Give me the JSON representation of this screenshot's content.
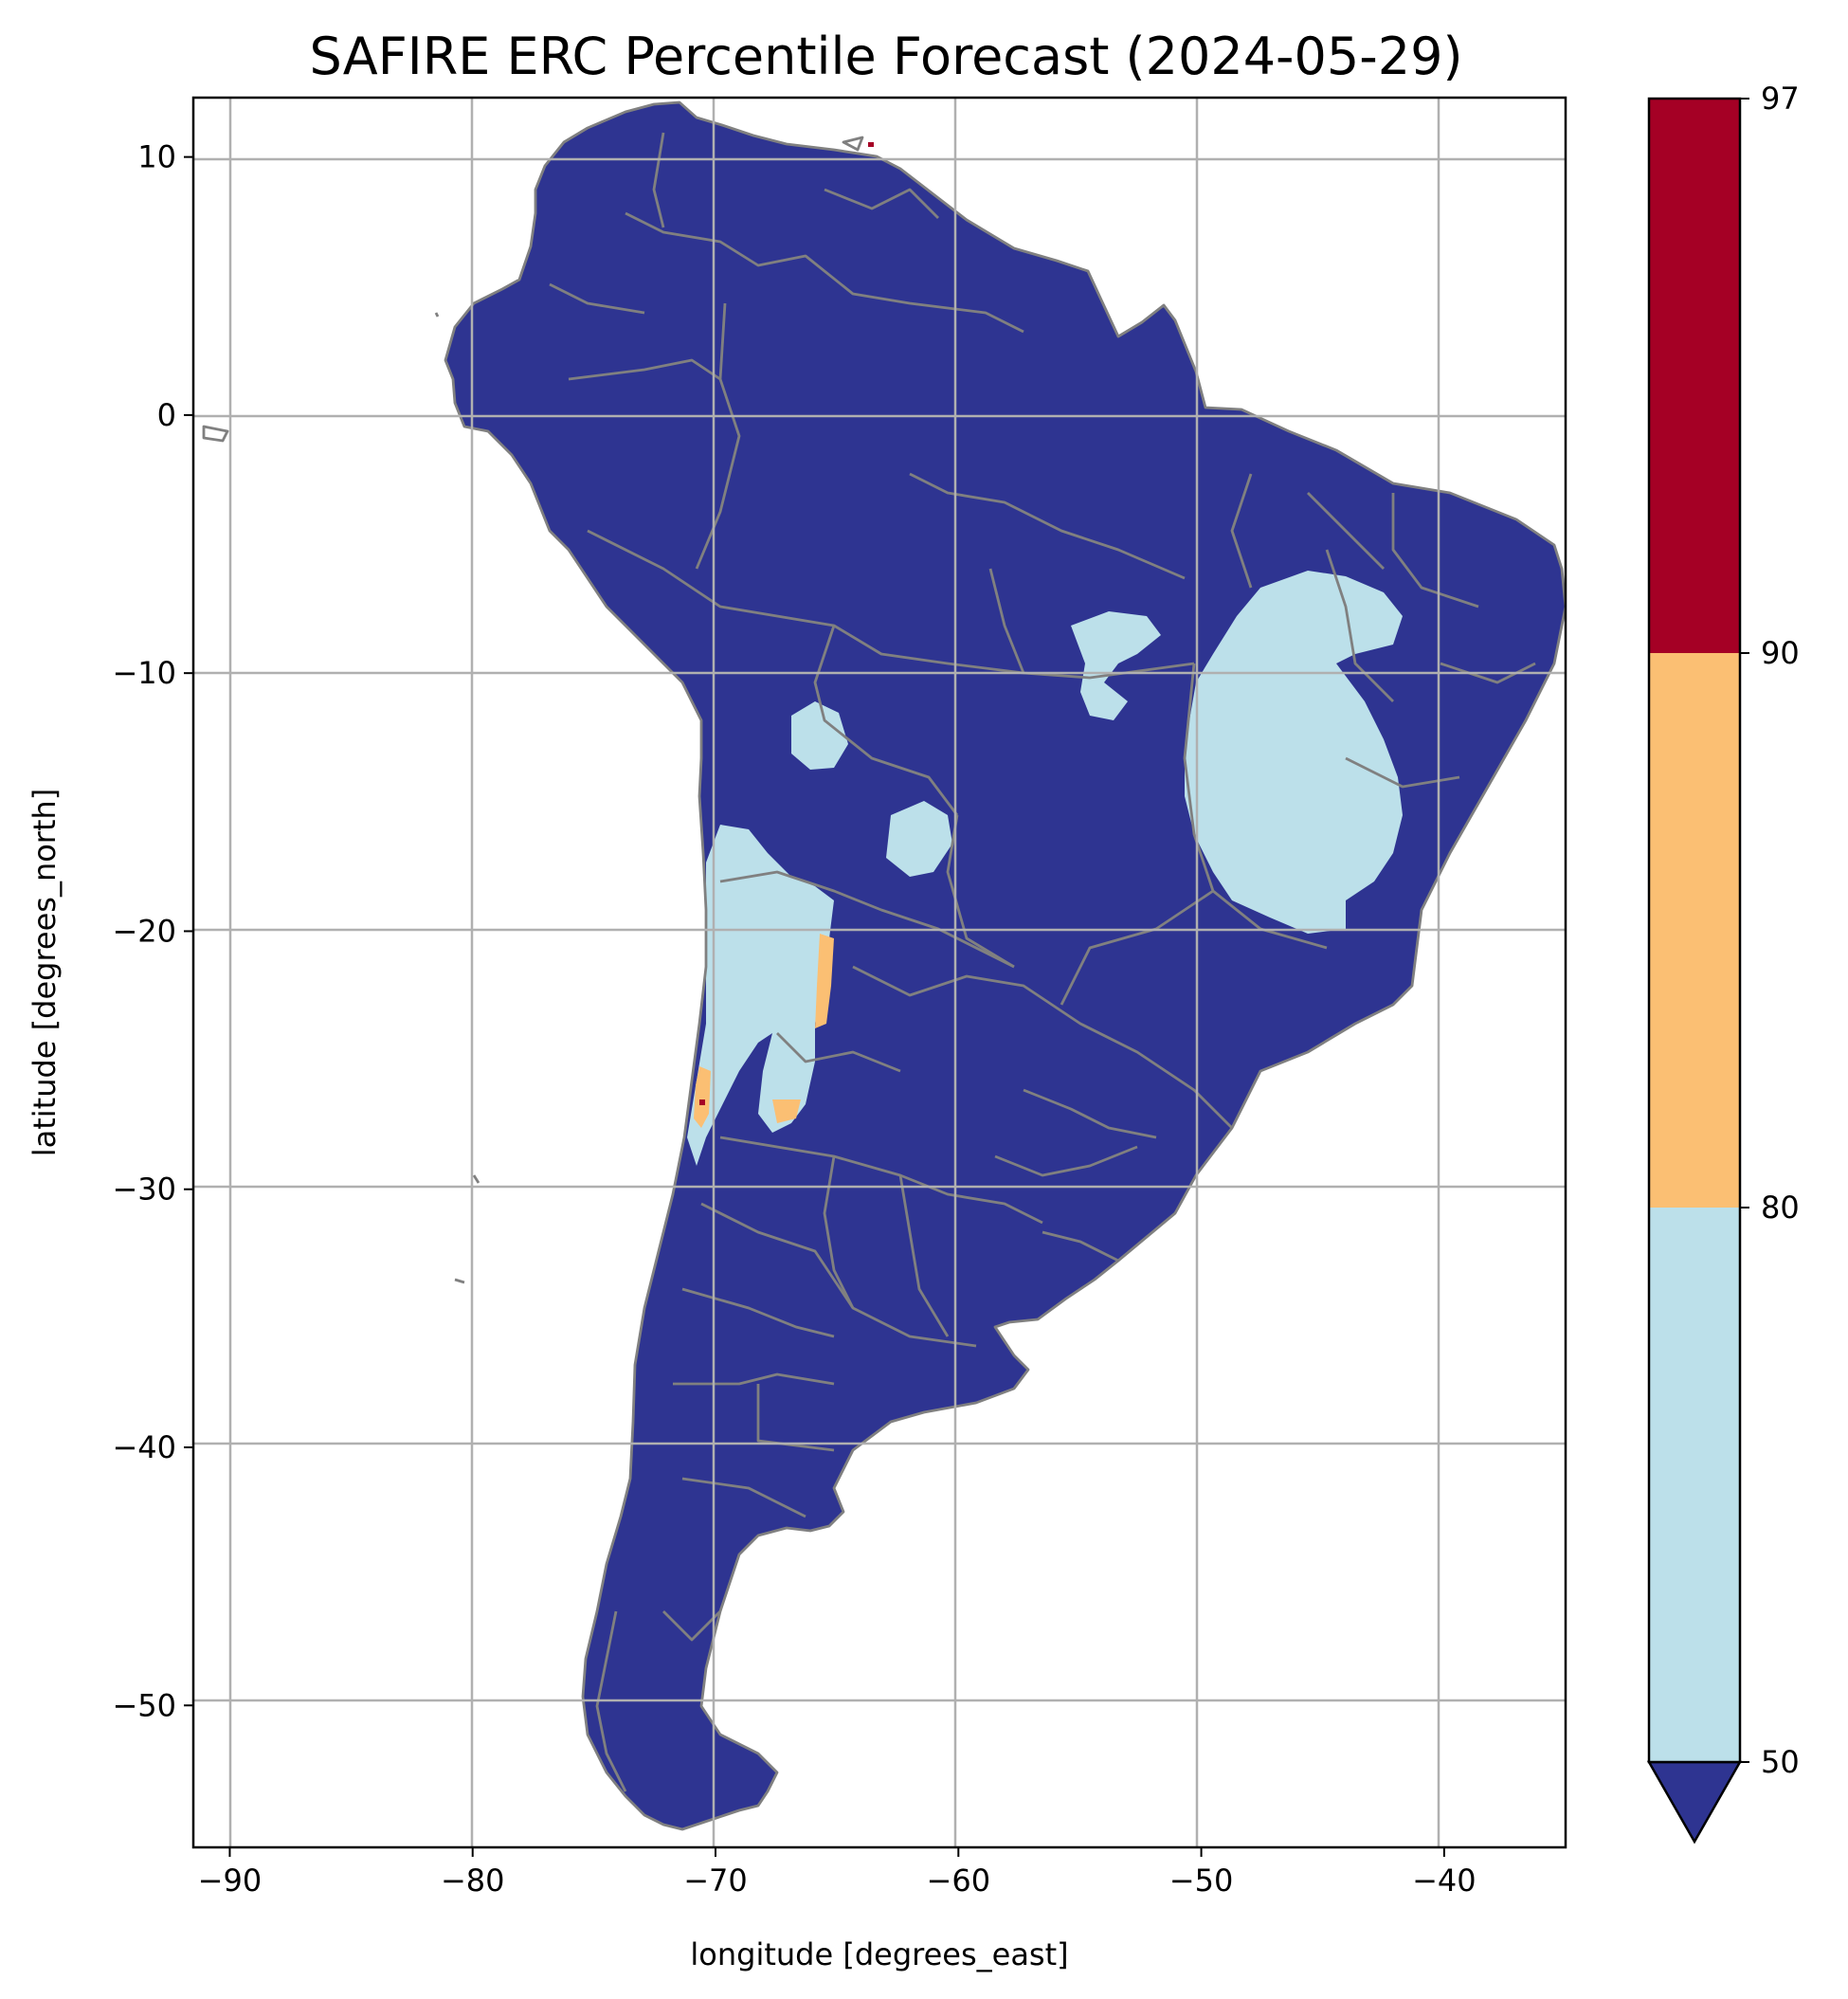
{
  "chart_data": {
    "type": "heatmap",
    "title": "SAFIRE ERC Percentile Forecast (2024-05-29)",
    "xlabel": "longitude [degrees_east]",
    "ylabel": "latitude [degrees_north]",
    "xlim": [
      -91.5,
      -35
    ],
    "ylim": [
      -55.5,
      12.3
    ],
    "x_ticks": [
      -90,
      -80,
      -70,
      -60,
      -50,
      -40
    ],
    "x_tick_labels": [
      "−90",
      "−80",
      "−70",
      "−60",
      "−50",
      "−40"
    ],
    "y_ticks": [
      10,
      0,
      -10,
      -20,
      -30,
      -40,
      -50
    ],
    "y_tick_labels": [
      "10",
      "0",
      "−10",
      "−20",
      "−30",
      "−40",
      "−50"
    ],
    "grid": true,
    "colorbar": {
      "extend": "min",
      "boundaries": [
        50,
        80,
        90,
        97
      ],
      "tick_labels": [
        "50",
        "80",
        "90",
        "97"
      ],
      "colors": {
        "below_50": "#2e3491",
        "50_80": "#bce0ea",
        "80_90": "#fbbf73",
        "90_97": "#a50025"
      }
    },
    "regions": [
      {
        "name": "continent-fill",
        "category": "below_50"
      },
      {
        "name": "ne-brazil-plateau",
        "category": "50_80"
      },
      {
        "name": "atacama-altiplano",
        "category": "50_80"
      },
      {
        "name": "western-andes-strip",
        "category": "80_90"
      },
      {
        "name": "caribbean-coast-pixel",
        "category": "90_97"
      }
    ],
    "colors": {
      "land_border": "#808080",
      "grid": "#b0b0b0"
    }
  }
}
